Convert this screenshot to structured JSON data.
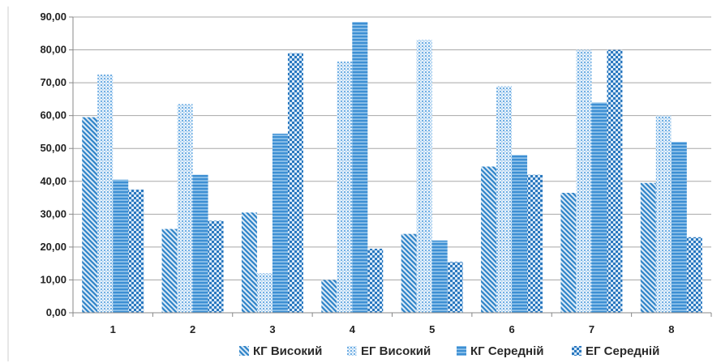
{
  "chart_data": {
    "type": "bar",
    "title": "",
    "xlabel": "",
    "ylabel": "",
    "categories": [
      "1",
      "2",
      "3",
      "4",
      "5",
      "6",
      "7",
      "8"
    ],
    "y_ticks": [
      "0,00",
      "10,00",
      "20,00",
      "30,00",
      "40,00",
      "50,00",
      "60,00",
      "70,00",
      "80,00",
      "90,00"
    ],
    "ylim": [
      0,
      90
    ],
    "grid": true,
    "legend_position": "bottom",
    "series": [
      {
        "name": "КГ Високий",
        "pattern": "diagonal-stripes",
        "color": "#3b8fd0",
        "values": [
          59.5,
          25.5,
          30.5,
          10,
          24,
          44.5,
          36.5,
          39.5
        ]
      },
      {
        "name": "ЕГ Високий",
        "pattern": "dotted",
        "color": "#7fb8e6",
        "values": [
          72.5,
          63.5,
          12,
          76.5,
          83,
          69,
          80,
          60
        ]
      },
      {
        "name": "КГ Середній",
        "pattern": "horizontal-stripes",
        "color": "#4a9ad8",
        "values": [
          40.5,
          42,
          54.5,
          88.5,
          22,
          48,
          64,
          52
        ]
      },
      {
        "name": "ЕГ Середній",
        "pattern": "checker",
        "color": "#2f7fc4",
        "values": [
          37.5,
          28,
          79,
          19.5,
          15.5,
          42,
          80,
          23
        ]
      }
    ]
  }
}
